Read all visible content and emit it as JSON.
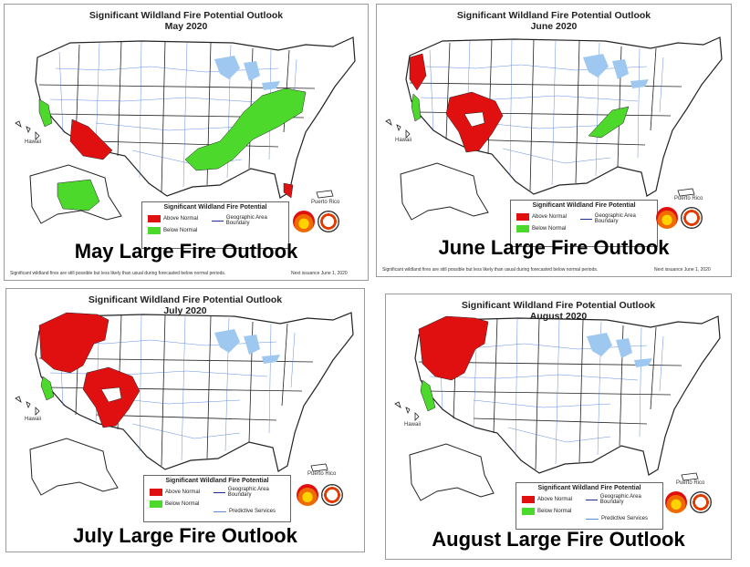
{
  "legend": {
    "title": "Significant Wildland Fire Potential",
    "above_normal": "Above Normal",
    "below_normal": "Below Normal",
    "geo_boundary": "Geographic Area Boundary",
    "predictive": "Predictive Services"
  },
  "colors": {
    "above": "#e01010",
    "below": "#4cd92b",
    "water": "#9ec8ef",
    "state": "#222222",
    "psa": "#3a6fd8"
  },
  "labels": {
    "hawaii": "Hawaii",
    "puerto_rico": "Puerto Rico"
  },
  "panels": [
    {
      "key": "may",
      "title": "Significant Wildland Fire Potential Outlook",
      "subtitle": "May 2020",
      "caption": "May Large Fire Outlook",
      "footnote": "Significant wildland fires are still possible but less likely than usual during forecasted below normal periods.",
      "next_issuance": "Next issuance June 1, 2020"
    },
    {
      "key": "june",
      "title": "Significant Wildland Fire Potential Outlook",
      "subtitle": "June 2020",
      "caption": "June Large Fire Outlook",
      "footnote": "Significant wildland fires are still possible but less likely than usual during forecasted below normal periods.",
      "next_issuance": "Next issuance June 1, 2020"
    },
    {
      "key": "july",
      "title": "Significant Wildland Fire Potential Outlook",
      "subtitle": "July 2020",
      "caption": "July Large Fire Outlook"
    },
    {
      "key": "august",
      "title": "Significant Wildland Fire Potential Outlook",
      "subtitle": "August 2020",
      "caption": "August Large Fire Outlook"
    }
  ]
}
